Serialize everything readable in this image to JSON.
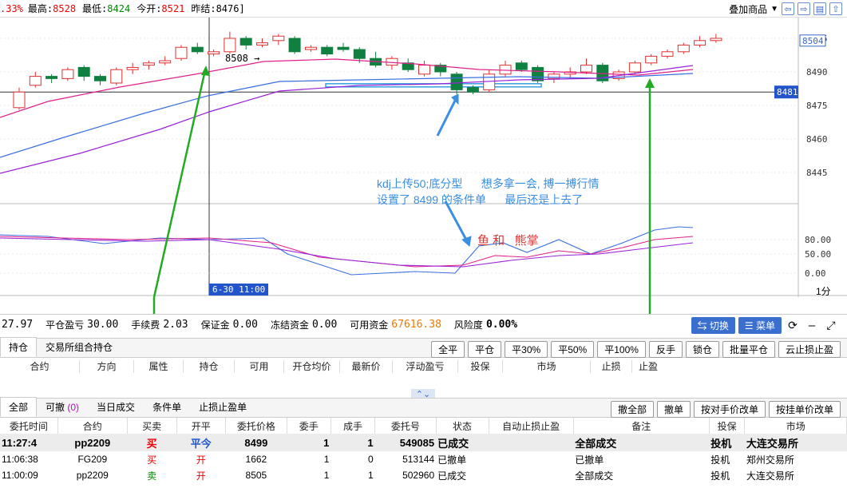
{
  "quote": {
    "change_pct": ".33%",
    "high_label": "最高:",
    "high": "8528",
    "low_label": "最低:",
    "low": "8424",
    "open_label": "今开:",
    "open": "8521",
    "prev_settle_label": "昨结:",
    "prev_settle": "8476]"
  },
  "toolbar": {
    "overlay_label": "叠加商品"
  },
  "chart": {
    "price_ticks": [
      "8505",
      "8490",
      "8475",
      "8460",
      "8445"
    ],
    "current_price_tag": "8504",
    "crosshair_price_tag": "8481",
    "high_marker": "8508 →",
    "indicator_ticks": [
      "80.00",
      "50.00",
      "0.00"
    ],
    "crosshair_time": "6-30 11:00",
    "period": "1分",
    "annotation_blue_line1": "kdj上传50;底分型      想多拿一会, 搏一搏行情",
    "annotation_blue_line2": "设置了 8499 的条件单      最后还是上去了",
    "annotation_red": "鱼 和   熊掌",
    "colors": {
      "up": "#e03030",
      "down": "#108040",
      "ma_blue": "#3a6fe0",
      "ma_purple": "#9a22d8",
      "annot_blue": "#3a8fe0",
      "arrow_green": "#22aa22"
    }
  },
  "account": {
    "value0": "27.97",
    "close_pnl_label": "平仓盈亏",
    "close_pnl": "30.00",
    "fee_label": "手续费",
    "fee": "2.03",
    "margin_label": "保证金",
    "margin": "0.00",
    "frozen_label": "冻结资金",
    "frozen": "0.00",
    "available_label": "可用资金",
    "available": "67616.38",
    "risk_label": "风险度",
    "risk": "0.00%",
    "switch_btn": "⇆ 切换",
    "menu_btn": "☰ 菜单"
  },
  "positions": {
    "tabs": [
      "持仓",
      "交易所组合持仓"
    ],
    "buttons": [
      "全平",
      "平仓",
      "平30%",
      "平50%",
      "平100%",
      "反手",
      "锁仓",
      "批量平仓",
      "云止损止盈"
    ],
    "columns": [
      "合约",
      "方向",
      "属性",
      "持仓",
      "可用",
      "开仓均价",
      "最新价",
      "浮动盈亏",
      "投保",
      "市场",
      "止损",
      "止盈"
    ]
  },
  "orders": {
    "tabs": [
      "全部",
      "可撤",
      "(0)",
      "当日成交",
      "条件单",
      "止损止盈单"
    ],
    "buttons": [
      "撤全部",
      "撤单",
      "按对手价改单",
      "按挂单价改单"
    ],
    "columns": [
      "委托时间",
      "合约",
      "买卖",
      "开平",
      "委托价格",
      "委手",
      "成手",
      "委托号",
      "状态",
      "自动止损止盈",
      "备注",
      "投保",
      "市场"
    ],
    "rows": [
      {
        "time": "11:27:4",
        "contract": "pp2209",
        "side": "买",
        "offset": "平今",
        "price": "8499",
        "qty": "1",
        "filled": "1",
        "order_no": "549085",
        "status": "已成交",
        "auto": "",
        "note": "全部成交",
        "hedge": "投机",
        "exchange": "大连交易所"
      },
      {
        "time": "11:06:38",
        "contract": "FG209",
        "side": "买",
        "offset": "开",
        "price": "1662",
        "qty": "1",
        "filled": "0",
        "order_no": "513144",
        "status": "已撤单",
        "auto": "",
        "note": "已撤单",
        "hedge": "投机",
        "exchange": "郑州交易所"
      },
      {
        "time": "11:00:09",
        "contract": "pp2209",
        "side": "卖",
        "offset": "开",
        "price": "8505",
        "qty": "1",
        "filled": "1",
        "order_no": "502960",
        "status": "已成交",
        "auto": "",
        "note": "全部成交",
        "hedge": "投机",
        "exchange": "大连交易所"
      }
    ]
  }
}
